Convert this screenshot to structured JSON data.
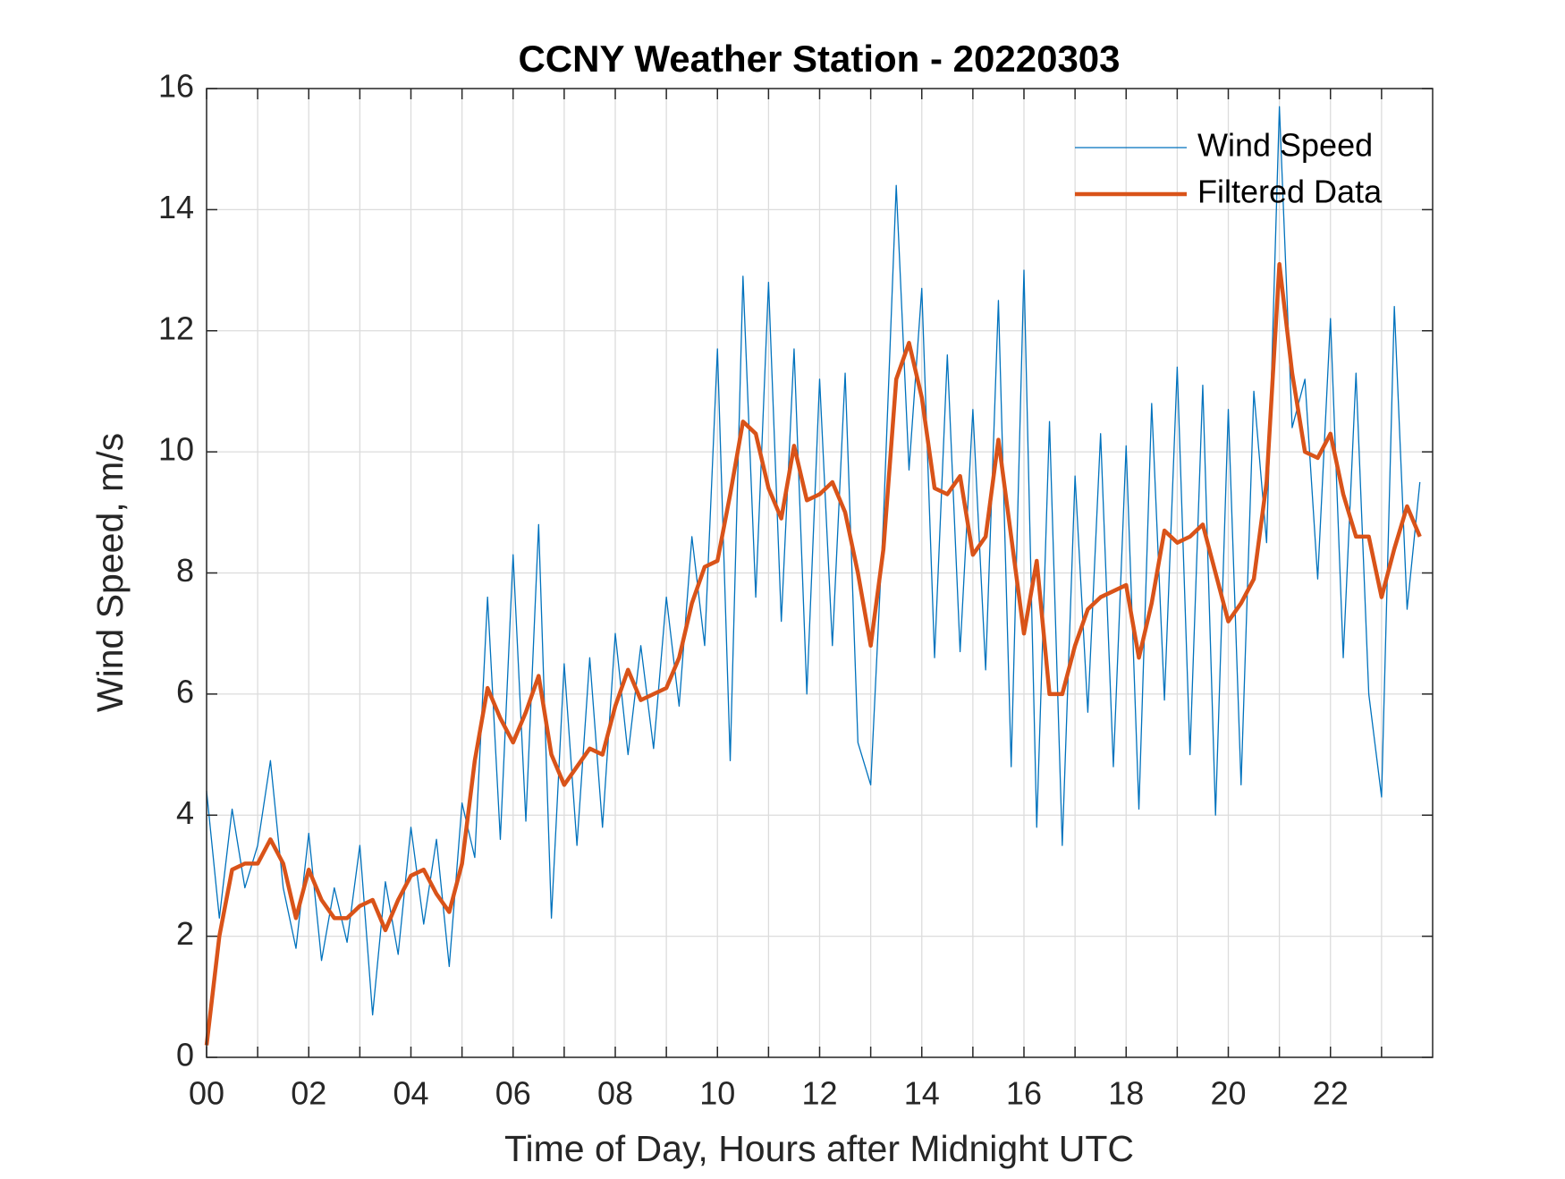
{
  "chart_data": {
    "type": "line",
    "title": "CCNY Weather Station - 20220303",
    "x_label": "Time of Day, Hours after Midnight UTC",
    "y_label": "Wind Speed, m/s",
    "x": [
      0,
      0.25,
      0.5,
      0.75,
      1,
      1.25,
      1.5,
      1.75,
      2,
      2.25,
      2.5,
      2.75,
      3,
      3.25,
      3.5,
      3.75,
      4,
      4.25,
      4.5,
      4.75,
      5,
      5.25,
      5.5,
      5.75,
      6,
      6.25,
      6.5,
      6.75,
      7,
      7.25,
      7.5,
      7.75,
      8,
      8.25,
      8.5,
      8.75,
      9,
      9.25,
      9.5,
      9.75,
      10,
      10.25,
      10.5,
      10.75,
      11,
      11.25,
      11.5,
      11.75,
      12,
      12.25,
      12.5,
      12.75,
      13,
      13.25,
      13.5,
      13.75,
      14,
      14.25,
      14.5,
      14.75,
      15,
      15.25,
      15.5,
      15.75,
      16,
      16.25,
      16.5,
      16.75,
      17,
      17.25,
      17.5,
      17.75,
      18,
      18.25,
      18.5,
      18.75,
      19,
      19.25,
      19.5,
      19.75,
      20,
      20.25,
      20.5,
      20.75,
      21,
      21.25,
      21.5,
      21.75,
      22,
      22.25,
      22.5,
      22.75,
      23,
      23.25,
      23.5,
      23.75
    ],
    "series": [
      {
        "name": "Wind Speed",
        "color": "#0072bd",
        "width": 1.3,
        "values": [
          4.4,
          2.3,
          4.1,
          2.8,
          3.5,
          4.9,
          2.8,
          1.8,
          3.7,
          1.6,
          2.8,
          1.9,
          3.5,
          0.7,
          2.9,
          1.7,
          3.8,
          2.2,
          3.6,
          1.5,
          4.2,
          3.3,
          7.6,
          3.6,
          8.3,
          3.9,
          8.8,
          2.3,
          6.5,
          3.5,
          6.6,
          3.8,
          7.0,
          5.0,
          6.8,
          5.1,
          7.6,
          5.8,
          8.6,
          6.8,
          11.7,
          4.9,
          12.9,
          7.6,
          12.8,
          7.2,
          11.7,
          6.0,
          11.2,
          6.8,
          11.3,
          5.2,
          4.5,
          8.9,
          14.4,
          9.7,
          12.7,
          6.6,
          11.6,
          6.7,
          10.7,
          6.4,
          12.5,
          4.8,
          13.0,
          3.8,
          10.5,
          3.5,
          9.6,
          5.7,
          10.3,
          4.8,
          10.1,
          4.1,
          10.8,
          5.9,
          11.4,
          5.0,
          11.1,
          4.0,
          10.7,
          4.5,
          11.0,
          8.5,
          15.7,
          10.4,
          11.2,
          7.9,
          12.2,
          6.6,
          11.3,
          6.0,
          4.3,
          12.4,
          7.4,
          9.5
        ]
      },
      {
        "name": "Filtered Data",
        "color": "#d95319",
        "width": 4.5,
        "values": [
          0.2,
          2.0,
          3.1,
          3.2,
          3.2,
          3.6,
          3.2,
          2.3,
          3.1,
          2.6,
          2.3,
          2.3,
          2.5,
          2.6,
          2.1,
          2.6,
          3.0,
          3.1,
          2.7,
          2.4,
          3.2,
          4.9,
          6.1,
          5.6,
          5.2,
          5.7,
          6.3,
          5.0,
          4.5,
          4.8,
          5.1,
          5.0,
          5.8,
          6.4,
          5.9,
          6.0,
          6.1,
          6.6,
          7.5,
          8.1,
          8.2,
          9.3,
          10.5,
          10.3,
          9.4,
          8.9,
          10.1,
          9.2,
          9.3,
          9.5,
          9.0,
          8.0,
          6.8,
          8.4,
          11.2,
          11.8,
          10.9,
          9.4,
          9.3,
          9.6,
          8.3,
          8.6,
          10.2,
          8.6,
          7.0,
          8.2,
          6.0,
          6.0,
          6.8,
          7.4,
          7.6,
          7.7,
          7.8,
          6.6,
          7.5,
          8.7,
          8.5,
          8.6,
          8.8,
          8.0,
          7.2,
          7.5,
          7.9,
          9.5,
          13.1,
          11.3,
          10.0,
          9.9,
          10.3,
          9.3,
          8.6,
          8.6,
          7.6,
          8.4,
          9.1,
          8.6
        ]
      }
    ],
    "xlim": [
      0,
      24
    ],
    "xticks": [
      {
        "value": 0,
        "label": "00"
      },
      {
        "value": 2,
        "label": "02"
      },
      {
        "value": 4,
        "label": "04"
      },
      {
        "value": 6,
        "label": "06"
      },
      {
        "value": 8,
        "label": "08"
      },
      {
        "value": 10,
        "label": "10"
      },
      {
        "value": 12,
        "label": "12"
      },
      {
        "value": 14,
        "label": "14"
      },
      {
        "value": 16,
        "label": "16"
      },
      {
        "value": 18,
        "label": "18"
      },
      {
        "value": 20,
        "label": "20"
      },
      {
        "value": 22,
        "label": "22"
      }
    ],
    "xminorticks": [
      1,
      3,
      5,
      7,
      9,
      11,
      13,
      15,
      17,
      19,
      21,
      23
    ],
    "ylim": [
      0,
      16
    ],
    "yticks": [
      0,
      2,
      4,
      6,
      8,
      10,
      12,
      14,
      16
    ],
    "grid": true,
    "legend": "top-right"
  }
}
